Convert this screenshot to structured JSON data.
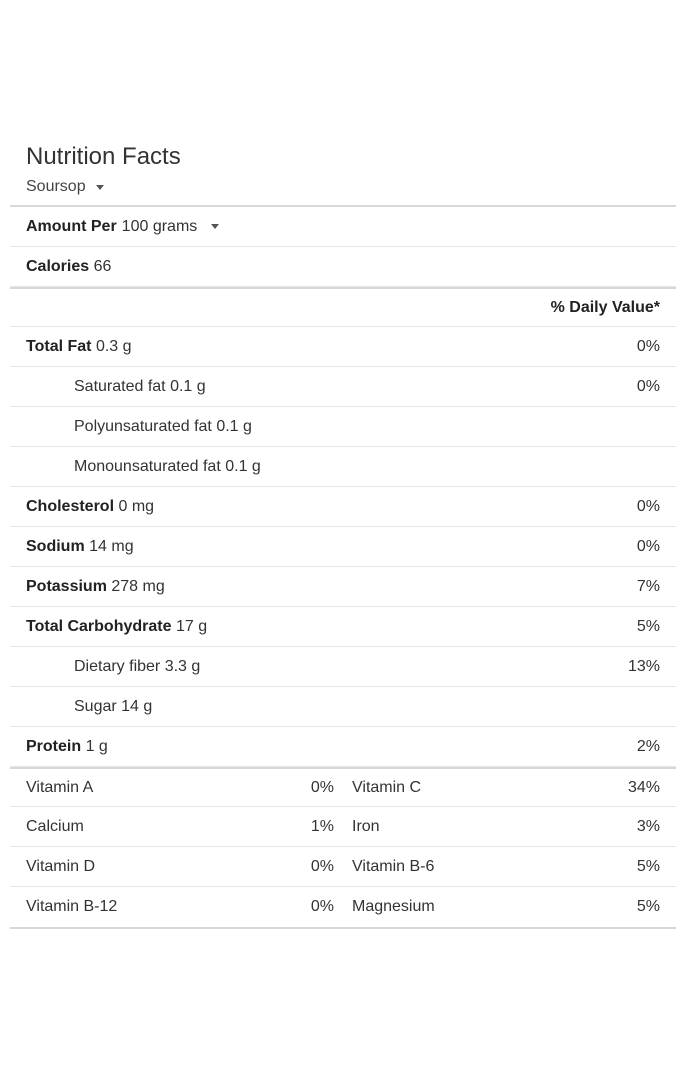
{
  "header": {
    "title": "Nutrition Facts",
    "food": "Soursop"
  },
  "serving": {
    "label": "Amount Per",
    "amount": "100 grams"
  },
  "calories": {
    "label": "Calories",
    "value": "66"
  },
  "daily_value_header": "% Daily Value*",
  "nutrients": [
    {
      "label": "Total Fat",
      "amount": "0.3 g",
      "dv": "0%"
    },
    {
      "label": "Saturated fat",
      "amount": "0.1 g",
      "dv": "0%"
    },
    {
      "label": "Polyunsaturated fat",
      "amount": "0.1 g",
      "dv": ""
    },
    {
      "label": "Monounsaturated fat",
      "amount": "0.1 g",
      "dv": ""
    },
    {
      "label": "Cholesterol",
      "amount": "0 mg",
      "dv": "0%"
    },
    {
      "label": "Sodium",
      "amount": "14 mg",
      "dv": "0%"
    },
    {
      "label": "Potassium",
      "amount": "278 mg",
      "dv": "7%"
    },
    {
      "label": "Total Carbohydrate",
      "amount": "17 g",
      "dv": "5%"
    },
    {
      "label": "Dietary fiber",
      "amount": "3.3 g",
      "dv": "13%"
    },
    {
      "label": "Sugar",
      "amount": "14 g",
      "dv": ""
    },
    {
      "label": "Protein",
      "amount": "1 g",
      "dv": "2%"
    }
  ],
  "vitamins": [
    {
      "left_name": "Vitamin A",
      "left_dv": "0%",
      "right_name": "Vitamin C",
      "right_dv": "34%"
    },
    {
      "left_name": "Calcium",
      "left_dv": "1%",
      "right_name": "Iron",
      "right_dv": "3%"
    },
    {
      "left_name": "Vitamin D",
      "left_dv": "0%",
      "right_name": "Vitamin B-6",
      "right_dv": "5%"
    },
    {
      "left_name": "Vitamin B-12",
      "left_dv": "0%",
      "right_name": "Magnesium",
      "right_dv": "5%"
    }
  ],
  "icons": {
    "food_dropdown": "chevron-down-icon",
    "serving_dropdown": "chevron-down-icon"
  }
}
